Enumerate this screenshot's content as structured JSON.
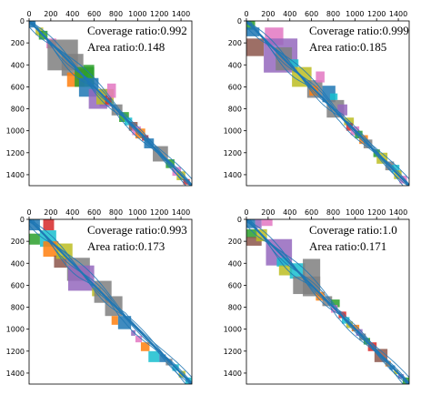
{
  "colors": [
    "#1f77b4",
    "#ff7f0e",
    "#2ca02c",
    "#d62728",
    "#9467bd",
    "#8c564b",
    "#e377c2",
    "#7f7f7f",
    "#bcbd22",
    "#17becf"
  ],
  "trace_color": "#1f77b4",
  "chart_data": [
    {
      "type": "heatmap",
      "xlim": [
        0,
        1500
      ],
      "ylim": [
        0,
        1500
      ],
      "xticks": [
        0,
        200,
        400,
        600,
        800,
        1000,
        1200,
        1400
      ],
      "yticks": [
        0,
        200,
        400,
        600,
        800,
        1000,
        1200,
        1400
      ],
      "y_inverted": true,
      "x_axis_on_top": true,
      "annotations": [
        "Coverage ratio:0.992",
        "Area ratio:0.148"
      ],
      "coverage_ratio": 0.992,
      "area_ratio": 0.148,
      "blocks": [
        {
          "x0": 0,
          "x1": 60,
          "y0": 0,
          "y1": 60,
          "color": 0
        },
        {
          "x0": 60,
          "x1": 130,
          "y0": 60,
          "y1": 130,
          "color": 8
        },
        {
          "x0": 90,
          "x1": 170,
          "y0": 90,
          "y1": 170,
          "color": 2
        },
        {
          "x0": 160,
          "x1": 250,
          "y0": 160,
          "y1": 250,
          "color": 6
        },
        {
          "x0": 170,
          "x1": 450,
          "y0": 170,
          "y1": 450,
          "color": 7
        },
        {
          "x0": 300,
          "x1": 500,
          "y0": 300,
          "y1": 500,
          "color": 7
        },
        {
          "x0": 440,
          "x1": 540,
          "y0": 440,
          "y1": 540,
          "color": 5
        },
        {
          "x0": 350,
          "x1": 510,
          "y0": 470,
          "y1": 600,
          "color": 1
        },
        {
          "x0": 420,
          "x1": 600,
          "y0": 420,
          "y1": 600,
          "color": 2
        },
        {
          "x0": 500,
          "x1": 600,
          "y0": 400,
          "y1": 520,
          "color": 2
        },
        {
          "x0": 460,
          "x1": 640,
          "y0": 520,
          "y1": 690,
          "color": 0
        },
        {
          "x0": 550,
          "x1": 720,
          "y0": 620,
          "y1": 800,
          "color": 4
        },
        {
          "x0": 650,
          "x1": 760,
          "y0": 680,
          "y1": 780,
          "color": 4
        },
        {
          "x0": 620,
          "x1": 780,
          "y0": 620,
          "y1": 760,
          "color": 8
        },
        {
          "x0": 700,
          "x1": 760,
          "y0": 680,
          "y1": 760,
          "color": 3
        },
        {
          "x0": 720,
          "x1": 800,
          "y0": 570,
          "y1": 700,
          "color": 6
        },
        {
          "x0": 760,
          "x1": 860,
          "y0": 760,
          "y1": 860,
          "color": 7
        },
        {
          "x0": 830,
          "x1": 920,
          "y0": 830,
          "y1": 920,
          "color": 2
        },
        {
          "x0": 880,
          "x1": 950,
          "y0": 880,
          "y1": 950,
          "color": 9
        },
        {
          "x0": 920,
          "x1": 1000,
          "y0": 920,
          "y1": 1000,
          "color": 5
        },
        {
          "x0": 950,
          "x1": 1030,
          "y0": 960,
          "y1": 1040,
          "color": 6
        },
        {
          "x0": 980,
          "x1": 1070,
          "y0": 980,
          "y1": 1070,
          "color": 1
        },
        {
          "x0": 1040,
          "x1": 1100,
          "y0": 1040,
          "y1": 1090,
          "color": 3
        },
        {
          "x0": 1060,
          "x1": 1150,
          "y0": 1070,
          "y1": 1160,
          "color": 0
        },
        {
          "x0": 1140,
          "x1": 1280,
          "y0": 1140,
          "y1": 1280,
          "color": 7
        },
        {
          "x0": 1260,
          "x1": 1340,
          "y0": 1260,
          "y1": 1340,
          "color": 2
        },
        {
          "x0": 1320,
          "x1": 1400,
          "y0": 1330,
          "y1": 1410,
          "color": 6
        },
        {
          "x0": 1360,
          "x1": 1440,
          "y0": 1370,
          "y1": 1450,
          "color": 8
        },
        {
          "x0": 1420,
          "x1": 1480,
          "y0": 1440,
          "y1": 1490,
          "color": 3
        }
      ]
    },
    {
      "type": "heatmap",
      "xlim": [
        0,
        1500
      ],
      "ylim": [
        0,
        1500
      ],
      "xticks": [
        0,
        200,
        400,
        600,
        800,
        1000,
        1200,
        1400
      ],
      "yticks": [
        0,
        200,
        400,
        600,
        800,
        1000,
        1200,
        1400
      ],
      "y_inverted": true,
      "x_axis_on_top": true,
      "annotations": [
        "Coverage ratio:0.999",
        "Area ratio:0.185"
      ],
      "coverage_ratio": 0.999,
      "area_ratio": 0.185,
      "blocks": [
        {
          "x0": 0,
          "x1": 80,
          "y0": 0,
          "y1": 80,
          "color": 2
        },
        {
          "x0": 0,
          "x1": 120,
          "y0": 60,
          "y1": 140,
          "color": 0
        },
        {
          "x0": 0,
          "x1": 160,
          "y0": 160,
          "y1": 320,
          "color": 5
        },
        {
          "x0": 170,
          "x1": 340,
          "y0": 60,
          "y1": 220,
          "color": 6
        },
        {
          "x0": 160,
          "x1": 470,
          "y0": 160,
          "y1": 470,
          "color": 4
        },
        {
          "x0": 270,
          "x1": 420,
          "y0": 240,
          "y1": 450,
          "color": 7
        },
        {
          "x0": 400,
          "x1": 480,
          "y0": 350,
          "y1": 420,
          "color": 9
        },
        {
          "x0": 420,
          "x1": 600,
          "y0": 420,
          "y1": 600,
          "color": 8
        },
        {
          "x0": 560,
          "x1": 700,
          "y0": 540,
          "y1": 700,
          "color": 7
        },
        {
          "x0": 580,
          "x1": 660,
          "y0": 590,
          "y1": 680,
          "color": 1
        },
        {
          "x0": 640,
          "x1": 720,
          "y0": 460,
          "y1": 560,
          "color": 6
        },
        {
          "x0": 700,
          "x1": 820,
          "y0": 590,
          "y1": 740,
          "color": 0
        },
        {
          "x0": 770,
          "x1": 840,
          "y0": 660,
          "y1": 720,
          "color": 9
        },
        {
          "x0": 740,
          "x1": 900,
          "y0": 720,
          "y1": 880,
          "color": 7
        },
        {
          "x0": 840,
          "x1": 930,
          "y0": 760,
          "y1": 860,
          "color": 4
        },
        {
          "x0": 900,
          "x1": 990,
          "y0": 880,
          "y1": 950,
          "color": 8
        },
        {
          "x0": 920,
          "x1": 980,
          "y0": 930,
          "y1": 1000,
          "color": 3
        },
        {
          "x0": 960,
          "x1": 1040,
          "y0": 960,
          "y1": 1040,
          "color": 6
        },
        {
          "x0": 1000,
          "x1": 1070,
          "y0": 1000,
          "y1": 1070,
          "color": 2
        },
        {
          "x0": 1040,
          "x1": 1120,
          "y0": 1040,
          "y1": 1120,
          "color": 1
        },
        {
          "x0": 1080,
          "x1": 1160,
          "y0": 1080,
          "y1": 1160,
          "color": 7
        },
        {
          "x0": 1170,
          "x1": 1230,
          "y0": 1170,
          "y1": 1240,
          "color": 2
        },
        {
          "x0": 1200,
          "x1": 1300,
          "y0": 1200,
          "y1": 1300,
          "color": 8
        },
        {
          "x0": 1280,
          "x1": 1360,
          "y0": 1280,
          "y1": 1360,
          "color": 7
        },
        {
          "x0": 1340,
          "x1": 1410,
          "y0": 1310,
          "y1": 1380,
          "color": 9
        },
        {
          "x0": 1360,
          "x1": 1430,
          "y0": 1360,
          "y1": 1440,
          "color": 8
        },
        {
          "x0": 1410,
          "x1": 1480,
          "y0": 1410,
          "y1": 1480,
          "color": 6
        }
      ]
    },
    {
      "type": "heatmap",
      "xlim": [
        0,
        1500
      ],
      "ylim": [
        0,
        1500
      ],
      "xticks": [
        0,
        200,
        400,
        600,
        800,
        1000,
        1200,
        1400
      ],
      "yticks": [
        0,
        200,
        400,
        600,
        800,
        1000,
        1200,
        1400
      ],
      "y_inverted": true,
      "x_axis_on_top": true,
      "annotations": [
        "Coverage ratio:0.993",
        "Area ratio:0.173"
      ],
      "coverage_ratio": 0.993,
      "area_ratio": 0.173,
      "blocks": [
        {
          "x0": 0,
          "x1": 100,
          "y0": 0,
          "y1": 100,
          "color": 0
        },
        {
          "x0": 130,
          "x1": 230,
          "y0": 0,
          "y1": 100,
          "color": 3
        },
        {
          "x0": 0,
          "x1": 100,
          "y0": 130,
          "y1": 230,
          "color": 2
        },
        {
          "x0": 100,
          "x1": 250,
          "y0": 100,
          "y1": 250,
          "color": 9
        },
        {
          "x0": 130,
          "x1": 270,
          "y0": 200,
          "y1": 340,
          "color": 1
        },
        {
          "x0": 230,
          "x1": 350,
          "y0": 330,
          "y1": 440,
          "color": 5
        },
        {
          "x0": 250,
          "x1": 400,
          "y0": 220,
          "y1": 360,
          "color": 8
        },
        {
          "x0": 350,
          "x1": 560,
          "y0": 350,
          "y1": 560,
          "color": 7
        },
        {
          "x0": 360,
          "x1": 600,
          "y0": 420,
          "y1": 650,
          "color": 4
        },
        {
          "x0": 580,
          "x1": 660,
          "y0": 620,
          "y1": 700,
          "color": 8
        },
        {
          "x0": 600,
          "x1": 760,
          "y0": 560,
          "y1": 760,
          "color": 7
        },
        {
          "x0": 700,
          "x1": 860,
          "y0": 700,
          "y1": 880,
          "color": 7
        },
        {
          "x0": 760,
          "x1": 820,
          "y0": 880,
          "y1": 960,
          "color": 1
        },
        {
          "x0": 820,
          "x1": 940,
          "y0": 880,
          "y1": 1000,
          "color": 0
        },
        {
          "x0": 940,
          "x1": 980,
          "y0": 1010,
          "y1": 1060,
          "color": 4
        },
        {
          "x0": 980,
          "x1": 1040,
          "y0": 1060,
          "y1": 1120,
          "color": 6
        },
        {
          "x0": 1030,
          "x1": 1110,
          "y0": 1120,
          "y1": 1200,
          "color": 1
        },
        {
          "x0": 1100,
          "x1": 1200,
          "y0": 1200,
          "y1": 1300,
          "color": 9
        },
        {
          "x0": 1200,
          "x1": 1260,
          "y0": 1230,
          "y1": 1300,
          "color": 0
        },
        {
          "x0": 1260,
          "x1": 1320,
          "y0": 1270,
          "y1": 1330,
          "color": 7
        },
        {
          "x0": 1320,
          "x1": 1380,
          "y0": 1320,
          "y1": 1380,
          "color": 9
        },
        {
          "x0": 1380,
          "x1": 1440,
          "y0": 1380,
          "y1": 1440,
          "color": 8
        },
        {
          "x0": 1440,
          "x1": 1500,
          "y0": 1440,
          "y1": 1500,
          "color": 9
        }
      ]
    },
    {
      "type": "heatmap",
      "xlim": [
        0,
        1500
      ],
      "ylim": [
        0,
        1500
      ],
      "xticks": [
        0,
        200,
        400,
        600,
        800,
        1000,
        1200,
        1400
      ],
      "yticks": [
        0,
        200,
        400,
        600,
        800,
        1000,
        1200,
        1400
      ],
      "y_inverted": true,
      "x_axis_on_top": true,
      "annotations": [
        "Coverage ratio:1.0",
        "Area ratio:0.171"
      ],
      "coverage_ratio": 1.0,
      "area_ratio": 0.171,
      "blocks": [
        {
          "x0": 0,
          "x1": 80,
          "y0": 0,
          "y1": 80,
          "color": 0
        },
        {
          "x0": 80,
          "x1": 140,
          "y0": 0,
          "y1": 80,
          "color": 4
        },
        {
          "x0": 140,
          "x1": 240,
          "y0": 0,
          "y1": 60,
          "color": 6
        },
        {
          "x0": 0,
          "x1": 100,
          "y0": 90,
          "y1": 170,
          "color": 2
        },
        {
          "x0": 0,
          "x1": 140,
          "y0": 160,
          "y1": 240,
          "color": 5
        },
        {
          "x0": 90,
          "x1": 190,
          "y0": 90,
          "y1": 200,
          "color": 8
        },
        {
          "x0": 180,
          "x1": 420,
          "y0": 180,
          "y1": 420,
          "color": 4
        },
        {
          "x0": 280,
          "x1": 390,
          "y0": 350,
          "y1": 430,
          "color": 9
        },
        {
          "x0": 300,
          "x1": 420,
          "y0": 420,
          "y1": 510,
          "color": 8
        },
        {
          "x0": 400,
          "x1": 540,
          "y0": 400,
          "y1": 540,
          "color": 9
        },
        {
          "x0": 430,
          "x1": 680,
          "y0": 520,
          "y1": 680,
          "color": 7
        },
        {
          "x0": 520,
          "x1": 680,
          "y0": 360,
          "y1": 700,
          "color": 7
        },
        {
          "x0": 640,
          "x1": 720,
          "y0": 660,
          "y1": 740,
          "color": 1
        },
        {
          "x0": 700,
          "x1": 790,
          "y0": 700,
          "y1": 790,
          "color": 7
        },
        {
          "x0": 780,
          "x1": 860,
          "y0": 730,
          "y1": 800,
          "color": 2
        },
        {
          "x0": 780,
          "x1": 840,
          "y0": 780,
          "y1": 850,
          "color": 6
        },
        {
          "x0": 850,
          "x1": 920,
          "y0": 840,
          "y1": 900,
          "color": 3
        },
        {
          "x0": 880,
          "x1": 950,
          "y0": 890,
          "y1": 950,
          "color": 9
        },
        {
          "x0": 920,
          "x1": 980,
          "y0": 930,
          "y1": 990,
          "color": 8
        },
        {
          "x0": 970,
          "x1": 1040,
          "y0": 960,
          "y1": 1020,
          "color": 1
        },
        {
          "x0": 1010,
          "x1": 1070,
          "y0": 1000,
          "y1": 1060,
          "color": 4
        },
        {
          "x0": 1040,
          "x1": 1100,
          "y0": 1040,
          "y1": 1100,
          "color": 7
        },
        {
          "x0": 1080,
          "x1": 1140,
          "y0": 1080,
          "y1": 1140,
          "color": 2
        },
        {
          "x0": 1120,
          "x1": 1200,
          "y0": 1120,
          "y1": 1200,
          "color": 3
        },
        {
          "x0": 1180,
          "x1": 1300,
          "y0": 1180,
          "y1": 1300,
          "color": 5
        },
        {
          "x0": 1280,
          "x1": 1330,
          "y0": 1290,
          "y1": 1340,
          "color": 1
        },
        {
          "x0": 1320,
          "x1": 1370,
          "y0": 1330,
          "y1": 1370,
          "color": 0
        },
        {
          "x0": 1360,
          "x1": 1400,
          "y0": 1370,
          "y1": 1410,
          "color": 8
        },
        {
          "x0": 1400,
          "x1": 1450,
          "y0": 1410,
          "y1": 1450,
          "color": 4
        },
        {
          "x0": 1440,
          "x1": 1500,
          "y0": 1440,
          "y1": 1500,
          "color": 2
        }
      ]
    }
  ]
}
